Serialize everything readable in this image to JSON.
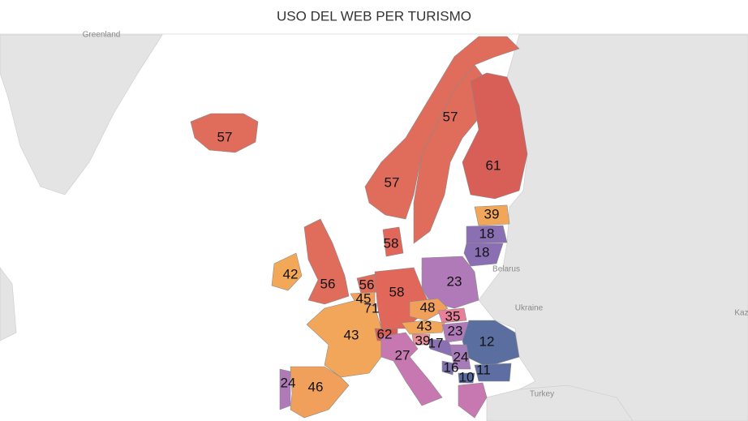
{
  "title": "USO DEL WEB PER TURISMO",
  "place_labels": [
    "Greenland",
    "Belarus",
    "Ukraine",
    "Turkey",
    "Kaz"
  ],
  "regions": [
    {
      "value": 57,
      "color": "#e06c5c"
    },
    {
      "value": 57,
      "color": "#e06c5c"
    },
    {
      "value": 57,
      "color": "#e06c5c"
    },
    {
      "value": 61,
      "color": "#d85f58"
    },
    {
      "value": 39,
      "color": "#f2a65a"
    },
    {
      "value": 18,
      "color": "#8a70b2"
    },
    {
      "value": 18,
      "color": "#8a70b2"
    },
    {
      "value": 58,
      "color": "#e0675a"
    },
    {
      "value": 42,
      "color": "#f3a858"
    },
    {
      "value": 56,
      "color": "#e06c5c"
    },
    {
      "value": 56,
      "color": "#e06c5c"
    },
    {
      "value": 45,
      "color": "#f0a05a"
    },
    {
      "value": 71,
      "color": "#d2555a"
    },
    {
      "value": 58,
      "color": "#e0675a"
    },
    {
      "value": 23,
      "color": "#b07ab8"
    },
    {
      "value": 48,
      "color": "#f0a05a"
    },
    {
      "value": 35,
      "color": "#e8809a"
    },
    {
      "value": 43,
      "color": "#f2a65a"
    },
    {
      "value": 23,
      "color": "#b07ab8"
    },
    {
      "value": 39,
      "color": "#e8909a"
    },
    {
      "value": 17,
      "color": "#8a70b2"
    },
    {
      "value": 12,
      "color": "#5a6fa0"
    },
    {
      "value": 11,
      "color": "#5f6ea2"
    },
    {
      "value": 24,
      "color": "#a77ab8"
    },
    {
      "value": 16,
      "color": "#7e70ae"
    },
    {
      "value": 10,
      "color": "#5a6a9e"
    },
    {
      "value": 43,
      "color": "#f2a65a"
    },
    {
      "value": 62,
      "color": "#d85f58"
    },
    {
      "value": 27,
      "color": "#c878b0"
    },
    {
      "value": 46,
      "color": "#f0a05a"
    },
    {
      "value": 24,
      "color": "#b07ab8"
    }
  ]
}
